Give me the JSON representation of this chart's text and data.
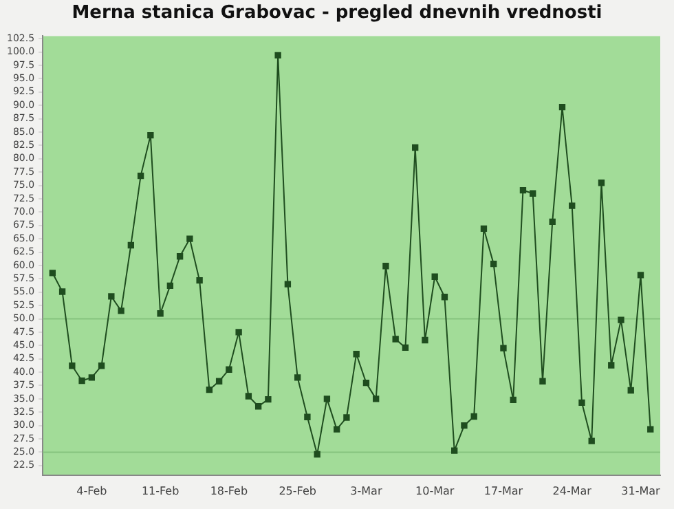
{
  "chart_data": {
    "type": "line",
    "title": "Merna stanica Grabovac - pregled dnevnih vrednosti",
    "x": [
      "--01-31",
      "--02-01",
      "--02-02",
      "--02-03",
      "--02-04",
      "--02-05",
      "--02-06",
      "--02-07",
      "--02-08",
      "--02-09",
      "--02-10",
      "--02-11",
      "--02-12",
      "--02-13",
      "--02-14",
      "--02-15",
      "--02-16",
      "--02-17",
      "--02-18",
      "--02-19",
      "--02-20",
      "--02-21",
      "--02-22",
      "--02-23",
      "--02-24",
      "--02-25",
      "--02-26",
      "--02-27",
      "--02-28",
      "--02-29",
      "--03-01",
      "--03-02",
      "--03-03",
      "--03-04",
      "--03-05",
      "--03-06",
      "--03-07",
      "--03-08",
      "--03-09",
      "--03-10",
      "--03-11",
      "--03-12",
      "--03-13",
      "--03-14",
      "--03-15",
      "--03-16",
      "--03-17",
      "--03-18",
      "--03-19",
      "--03-20",
      "--03-21",
      "--03-22",
      "--03-23",
      "--03-24",
      "--03-25",
      "--03-26",
      "--03-27",
      "--03-28",
      "--03-29",
      "--03-30",
      "--03-31",
      "--04-01"
    ],
    "series": [
      {
        "color": "#1f4d1f",
        "values": [
          58.6,
          55.1,
          41.2,
          38.4,
          39.0,
          41.2,
          54.2,
          51.5,
          63.8,
          76.8,
          84.4,
          51.0,
          56.2,
          61.7,
          65.0,
          57.2,
          36.7,
          38.3,
          40.5,
          47.5,
          35.5,
          33.6,
          34.9,
          99.4,
          56.5,
          39.0,
          31.6,
          24.6,
          35.0,
          29.3,
          31.5,
          43.4,
          38.0,
          35.0,
          59.9,
          46.2,
          44.6,
          82.1,
          46.0,
          57.9,
          54.1,
          25.3,
          30.0,
          31.7,
          66.9,
          60.3,
          44.5,
          34.8,
          74.1,
          73.5,
          38.3,
          68.2,
          89.7,
          71.2,
          34.3,
          27.1,
          75.5,
          41.3,
          49.8,
          36.6,
          58.2,
          29.3
        ]
      }
    ],
    "xlim": [
      "--01-30",
      "--04-02"
    ],
    "xticks": [
      {
        "value": "--02-04",
        "label": "4-Feb"
      },
      {
        "value": "--02-11",
        "label": "11-Feb"
      },
      {
        "value": "--02-18",
        "label": "18-Feb"
      },
      {
        "value": "--02-25",
        "label": "25-Feb"
      },
      {
        "value": "--03-03",
        "label": "3-Mar"
      },
      {
        "value": "--03-10",
        "label": "10-Mar"
      },
      {
        "value": "--03-17",
        "label": "17-Mar"
      },
      {
        "value": "--03-24",
        "label": "24-Mar"
      },
      {
        "value": "--03-31",
        "label": "31-Mar"
      }
    ],
    "ylim": [
      20.7,
      103
    ],
    "yticks": [
      {
        "value": 22.5,
        "label": "22.5"
      },
      {
        "value": 25,
        "label": "25.0"
      },
      {
        "value": 27.5,
        "label": "27.5"
      },
      {
        "value": 30,
        "label": "30.0"
      },
      {
        "value": 32.5,
        "label": "32.5"
      },
      {
        "value": 35,
        "label": "35.0"
      },
      {
        "value": 37.5,
        "label": "37.5"
      },
      {
        "value": 40,
        "label": "40.0"
      },
      {
        "value": 42.5,
        "label": "42.5"
      },
      {
        "value": 45,
        "label": "45.0"
      },
      {
        "value": 47.5,
        "label": "47.5"
      },
      {
        "value": 50,
        "label": "50.0"
      },
      {
        "value": 52.5,
        "label": "52.5"
      },
      {
        "value": 55,
        "label": "55.0"
      },
      {
        "value": 57.5,
        "label": "57.5"
      },
      {
        "value": 60,
        "label": "60.0"
      },
      {
        "value": 62.5,
        "label": "62.5"
      },
      {
        "value": 65,
        "label": "65.0"
      },
      {
        "value": 67.5,
        "label": "67.5"
      },
      {
        "value": 70,
        "label": "70.0"
      },
      {
        "value": 72.5,
        "label": "72.5"
      },
      {
        "value": 75,
        "label": "75.0"
      },
      {
        "value": 77.5,
        "label": "77.5"
      },
      {
        "value": 80,
        "label": "80.0"
      },
      {
        "value": 82.5,
        "label": "82.5"
      },
      {
        "value": 85,
        "label": "85.0"
      },
      {
        "value": 87.5,
        "label": "87.5"
      },
      {
        "value": 90,
        "label": "90.0"
      },
      {
        "value": 92.5,
        "label": "92.5"
      },
      {
        "value": 95,
        "label": "95.0"
      },
      {
        "value": 97.5,
        "label": "97.5"
      },
      {
        "value": 100,
        "label": "100.0"
      },
      {
        "value": 102.5,
        "label": "102.5"
      }
    ],
    "ref_lines": [
      {
        "axis": "y",
        "value": 50,
        "color": "#86c47f"
      },
      {
        "axis": "y",
        "value": 25,
        "color": "#86c47f"
      }
    ],
    "marker": "square",
    "line_style": "solid",
    "grid": false,
    "legend": false
  }
}
